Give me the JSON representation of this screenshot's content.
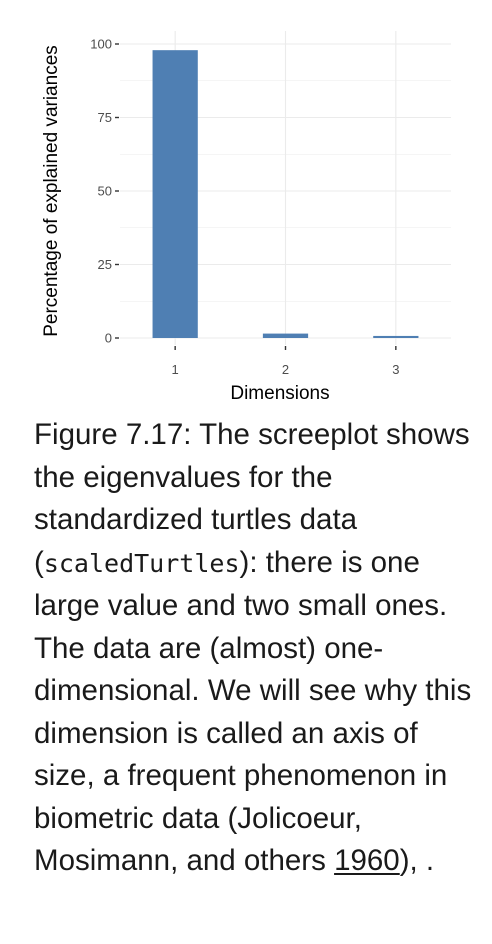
{
  "chart_data": {
    "type": "bar",
    "categories": [
      "1",
      "2",
      "3"
    ],
    "values": [
      97.9,
      1.5,
      0.7
    ],
    "xlabel": "Dimensions",
    "ylabel": "Percentage of explained variances",
    "ylim": [
      0,
      100
    ],
    "yticks": [
      0,
      25,
      50,
      75,
      100
    ],
    "grid": true,
    "bar_color": "#4F7FB3",
    "grid_color": "#EBEBEB"
  },
  "caption": {
    "label": "Figure 7.17: ",
    "text_1": "The screeplot shows the eigenvalues for the standardized turtles data (",
    "code": "scaledTurtles",
    "text_2": "): there is one large value and two small ones. The data are (almost) one-dimensional. We will see why this dimension is called an axis of size, a frequent phenomenon in biometric data (Jolicoeur, Mosimann, and others ",
    "cite_year": "1960",
    "text_3": "), ."
  }
}
